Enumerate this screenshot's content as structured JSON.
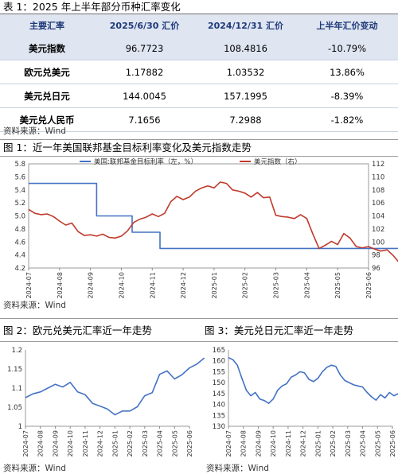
{
  "table": {
    "caption": "表 1：2025 年上半年部分币种汇率变化",
    "headers": [
      "主要汇率",
      "2025/6/30 汇价",
      "2024/12/31 汇价",
      "上半年汇价变动"
    ],
    "rows": [
      [
        "美元指数",
        "96.7723",
        "108.4816",
        "-10.79%"
      ],
      [
        "欧元兑美元",
        "1.17882",
        "1.03532",
        "13.86%"
      ],
      [
        "美元兑日元",
        "144.0045",
        "157.1995",
        "-8.39%"
      ],
      [
        "美元兑人民币",
        "7.1656",
        "7.2988",
        "-1.82%"
      ]
    ],
    "source": "资料来源：Wind"
  },
  "colors": {
    "blue": "#4472c4",
    "red": "#c0392b",
    "header_bg": "#dfe5f1"
  },
  "chart_data": [
    {
      "caption": "图 1：近一年美国联邦基金目标利率变化及美元指数走势",
      "source": "资料来源：Wind",
      "type": "line",
      "ylim_left": [
        4.2,
        5.8
      ],
      "yticks_left": [
        "5.8",
        "5.6",
        "5.4",
        "5.2",
        "5.0",
        "4.8",
        "4.6",
        "4.4",
        "4.2"
      ],
      "ylim_right": [
        96,
        112
      ],
      "yticks_right": [
        "112",
        "110",
        "108",
        "106",
        "104",
        "102",
        "100",
        "98",
        "96"
      ],
      "x_ticks": [
        "2024-07",
        "2024-08",
        "2024-09",
        "2024-10",
        "2024-11",
        "2024-12",
        "2025-01",
        "2025-02",
        "2025-03",
        "2025-04",
        "2025-05",
        "2025-06"
      ],
      "legend": "top",
      "series": [
        {
          "name": "美国:联邦基金目标利率（左，%）",
          "axis": "left",
          "color": "#4472c4",
          "x": [
            0,
            2.2,
            2.2,
            3.35,
            3.35,
            4.25,
            4.25,
            5.5,
            5.5,
            12
          ],
          "values": [
            5.5,
            5.5,
            5.0,
            5.0,
            4.75,
            4.75,
            4.5,
            4.5,
            4.5,
            4.5
          ]
        },
        {
          "name": "美元指数（右）",
          "axis": "right",
          "color": "#c0392b",
          "x": [
            0,
            0.2,
            0.4,
            0.6,
            0.8,
            1.0,
            1.2,
            1.4,
            1.6,
            1.8,
            2.0,
            2.2,
            2.4,
            2.6,
            2.8,
            3.0,
            3.2,
            3.4,
            3.6,
            3.8,
            4.0,
            4.2,
            4.4,
            4.6,
            4.8,
            5.0,
            5.2,
            5.4,
            5.6,
            5.8,
            6.0,
            6.2,
            6.4,
            6.6,
            6.8,
            7.0,
            7.2,
            7.4,
            7.6,
            7.8,
            8.0,
            8.2,
            8.4,
            8.6,
            8.8,
            9.0,
            9.2,
            9.4,
            9.6,
            9.8,
            10.0,
            10.2,
            10.4,
            10.6,
            10.8,
            11.0,
            11.2,
            11.4,
            11.6,
            11.8,
            12.0
          ],
          "values": [
            105.0,
            104.4,
            104.2,
            104.3,
            103.9,
            103.2,
            102.6,
            102.9,
            101.6,
            101.0,
            101.1,
            100.9,
            101.2,
            100.7,
            100.6,
            100.9,
            101.7,
            103.0,
            103.5,
            103.8,
            104.3,
            103.9,
            104.4,
            106.2,
            107.0,
            106.5,
            106.9,
            107.8,
            108.3,
            108.6,
            108.3,
            109.2,
            109.0,
            108.0,
            107.8,
            107.5,
            106.9,
            107.6,
            106.8,
            106.9,
            104.1,
            103.9,
            103.8,
            103.6,
            104.2,
            103.6,
            101.2,
            99.0,
            99.5,
            100.1,
            99.6,
            101.3,
            100.6,
            99.3,
            99.1,
            99.3,
            98.9,
            98.6,
            98.8,
            97.9,
            96.8
          ]
        }
      ]
    },
    {
      "caption": "图 2：欧元兑美元汇率近一年走势",
      "source": "资料来源：Wind",
      "type": "line",
      "ylim": [
        1.0,
        1.2
      ],
      "yticks": [
        "1.2",
        "1.15",
        "1.1",
        "1.05",
        "1"
      ],
      "x_ticks": [
        "2024-07",
        "2024-08",
        "2024-09",
        "2024-10",
        "2024-11",
        "2024-12",
        "2025-01",
        "2025-02",
        "2025-03",
        "2025-04",
        "2025-05",
        "2025-06"
      ],
      "series": [
        {
          "color": "#4472c4",
          "x": [
            0,
            0.5,
            1.0,
            1.5,
            2.0,
            2.5,
            3.0,
            3.5,
            4.0,
            4.5,
            5.0,
            5.5,
            6.0,
            6.5,
            7.0,
            7.5,
            8.0,
            8.5,
            9.0,
            9.5,
            10.0,
            10.5,
            11.0,
            11.5,
            12.0
          ],
          "values": [
            1.075,
            1.085,
            1.09,
            1.1,
            1.11,
            1.103,
            1.115,
            1.09,
            1.083,
            1.06,
            1.053,
            1.045,
            1.03,
            1.04,
            1.04,
            1.051,
            1.08,
            1.088,
            1.136,
            1.145,
            1.124,
            1.135,
            1.153,
            1.163,
            1.179
          ]
        }
      ]
    },
    {
      "caption": "图 3：美元兑日元汇率近一年走势",
      "source": "资料来源：Wind",
      "type": "line",
      "ylim": [
        130,
        165
      ],
      "yticks": [
        "165",
        "160",
        "155",
        "150",
        "145",
        "140",
        "135",
        "130"
      ],
      "x_ticks": [
        "2024-07",
        "2024-08",
        "2024-09",
        "2024-10",
        "2024-11",
        "2024-12",
        "2025-01",
        "2025-02",
        "2025-03",
        "2025-04",
        "2025-05",
        "2025-06"
      ],
      "series": [
        {
          "color": "#4472c4",
          "x": [
            0,
            0.3,
            0.6,
            0.9,
            1.2,
            1.5,
            1.8,
            2.1,
            2.4,
            2.7,
            3.0,
            3.3,
            3.6,
            3.9,
            4.2,
            4.5,
            4.8,
            5.1,
            5.4,
            5.7,
            6.0,
            6.3,
            6.6,
            6.9,
            7.2,
            7.5,
            7.8,
            8.1,
            8.4,
            8.7,
            9.0,
            9.3,
            9.6,
            9.9,
            10.2,
            10.5,
            10.8,
            11.1,
            11.4,
            11.7,
            12.0
          ],
          "values": [
            161.5,
            160.5,
            158.0,
            152.0,
            146.5,
            144.0,
            145.5,
            142.5,
            141.8,
            140.5,
            142.5,
            146.5,
            148.5,
            149.5,
            152.5,
            153.5,
            155.0,
            154.5,
            151.5,
            150.5,
            152.0,
            155.0,
            157.0,
            158.0,
            157.5,
            153.5,
            151.0,
            150.0,
            149.0,
            148.5,
            148.0,
            145.5,
            143.5,
            142.0,
            144.5,
            143.0,
            145.5,
            144.0,
            145.0,
            144.5,
            144.0
          ]
        }
      ]
    }
  ]
}
